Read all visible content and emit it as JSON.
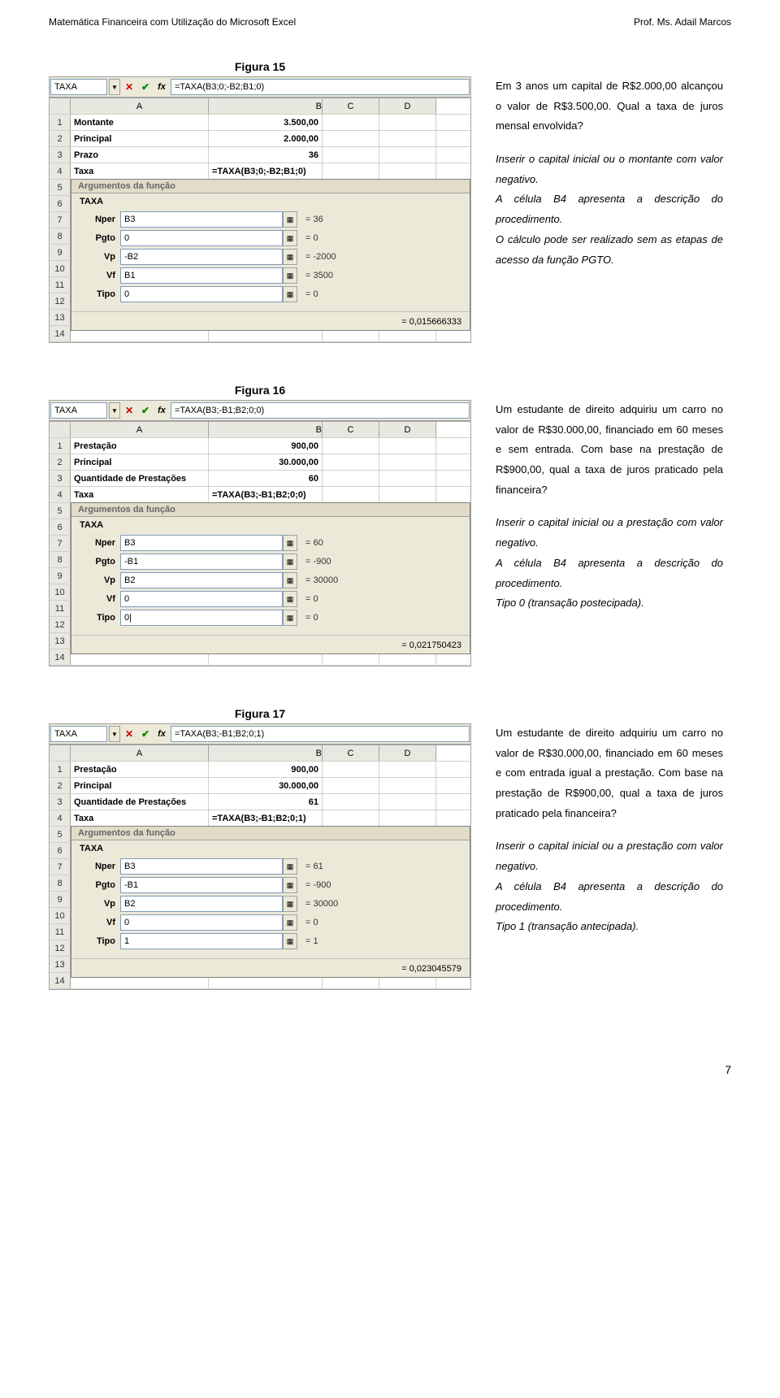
{
  "header": {
    "left": "Matemática Financeira com Utilização do Microsoft Excel",
    "right": "Prof. Ms. Adail Marcos"
  },
  "figures": [
    {
      "title": "Figura 15",
      "nameBox": "TAXA",
      "formula": "=TAXA(B3;0;-B2;B1;0)",
      "cols": [
        "A",
        "B",
        "C",
        "D"
      ],
      "rows": [
        [
          "Montante",
          "3.500,00",
          "",
          ""
        ],
        [
          "Principal",
          "2.000,00",
          "",
          ""
        ],
        [
          "Prazo",
          "36",
          "",
          ""
        ],
        [
          "Taxa",
          "=TAXA(B3;0;-B2;B1;0)",
          "",
          ""
        ]
      ],
      "fnTitle": "Argumentos da função",
      "fnName": "TAXA",
      "args": [
        {
          "label": "Nper",
          "val": "B3",
          "eq": "= 36"
        },
        {
          "label": "Pgto",
          "val": "0",
          "eq": "= 0"
        },
        {
          "label": "Vp",
          "val": "-B2",
          "eq": "= -2000"
        },
        {
          "label": "Vf",
          "val": "B1",
          "eq": "= 3500"
        },
        {
          "label": "Tipo",
          "val": "0",
          "eq": "= 0"
        }
      ],
      "result": "= 0,015666333",
      "blankRows": 10,
      "sideText": [
        "Em 3 anos um capital de R$2.000,00 alcançou o valor de R$3.500,00. Qual a taxa de juros mensal envolvida?",
        "<em>Inserir o capital inicial ou o montante com valor negativo.<br>A célula B4 apresenta a descrição do procedimento.<br>O cálculo pode ser realizado sem as etapas de acesso da função PGTO.</em>"
      ]
    },
    {
      "title": "Figura 16",
      "nameBox": "TAXA",
      "formula": "=TAXA(B3;-B1;B2;0;0)",
      "cols": [
        "A",
        "B",
        "C",
        "D"
      ],
      "rows": [
        [
          "Prestação",
          "900,00",
          "",
          ""
        ],
        [
          "Principal",
          "30.000,00",
          "",
          ""
        ],
        [
          "Quantidade de Prestações",
          "60",
          "",
          ""
        ],
        [
          "Taxa",
          "=TAXA(B3;-B1;B2;0;0)",
          "",
          ""
        ]
      ],
      "fnTitle": "Argumentos da função",
      "fnName": "TAXA",
      "args": [
        {
          "label": "Nper",
          "val": "B3",
          "eq": "= 60"
        },
        {
          "label": "Pgto",
          "val": "-B1",
          "eq": "= -900"
        },
        {
          "label": "Vp",
          "val": "B2",
          "eq": "= 30000"
        },
        {
          "label": "Vf",
          "val": "0",
          "eq": "= 0"
        },
        {
          "label": "Tipo",
          "val": "0|",
          "eq": "= 0"
        }
      ],
      "result": "= 0,021750423",
      "blankRows": 10,
      "sideText": [
        "Um estudante de direito adquiriu um carro no valor de R$30.000,00, financiado em 60 meses e sem entrada. Com base na prestação de R$900,00, qual a taxa de juros praticado pela financeira?",
        "<em>Inserir o capital inicial ou a prestação com valor negativo.<br>A célula B4 apresenta a descrição do procedimento.<br>Tipo 0 (transação postecipada).</em>"
      ]
    },
    {
      "title": "Figura 17",
      "nameBox": "TAXA",
      "formula": "=TAXA(B3;-B1;B2;0;1)",
      "cols": [
        "A",
        "B",
        "C",
        "D"
      ],
      "rows": [
        [
          "Prestação",
          "900,00",
          "",
          ""
        ],
        [
          "Principal",
          "30.000,00",
          "",
          ""
        ],
        [
          "Quantidade de Prestações",
          "61",
          "",
          ""
        ],
        [
          "Taxa",
          "=TAXA(B3;-B1;B2;0;1)",
          "",
          ""
        ]
      ],
      "fnTitle": "Argumentos da função",
      "fnName": "TAXA",
      "args": [
        {
          "label": "Nper",
          "val": "B3",
          "eq": "= 61"
        },
        {
          "label": "Pgto",
          "val": "-B1",
          "eq": "= -900"
        },
        {
          "label": "Vp",
          "val": "B2",
          "eq": "= 30000"
        },
        {
          "label": "Vf",
          "val": "0",
          "eq": "= 0"
        },
        {
          "label": "Tipo",
          "val": "1",
          "eq": "= 1"
        }
      ],
      "result": "= 0,023045579",
      "blankRows": 10,
      "sideText": [
        "Um estudante de direito adquiriu um carro no valor de R$30.000,00, financiado em 60 meses e com entrada igual a prestação. Com base na prestação de R$900,00, qual a taxa de juros praticado pela financeira?",
        "<em>Inserir o capital inicial ou a prestação com valor negativo.<br>A célula B4 apresenta a descrição do procedimento.<br>Tipo 1 (transação antecipada).</em>"
      ]
    }
  ],
  "pageNum": "7",
  "colors": {
    "dialogBg": "#ece9d8",
    "border": "#a4a4a4",
    "headerBg": "#e8e8e0",
    "inputBorder": "#7f9db9"
  }
}
